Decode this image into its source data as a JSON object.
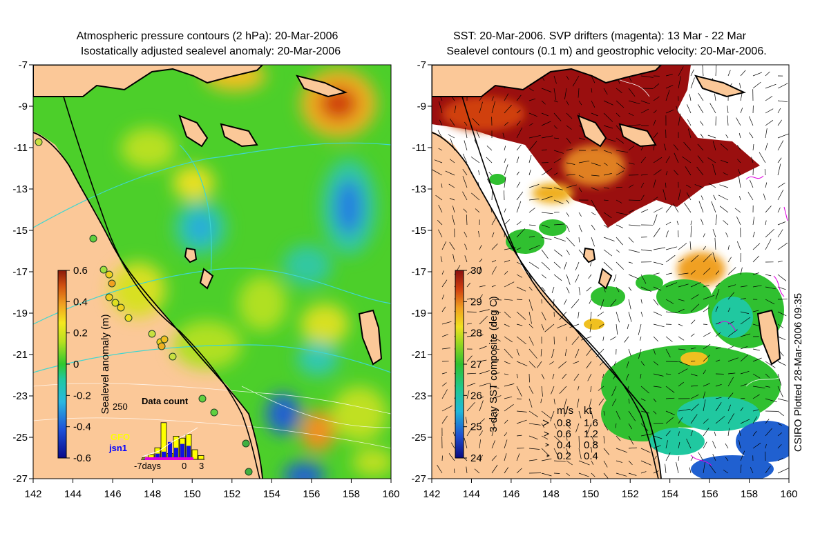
{
  "left_panel": {
    "title_line1": "Atmospheric pressure contours (2 hPa): 20-Mar-2006",
    "title_line2": "Isostatically adjusted sealevel anomaly: 20-Mar-2006",
    "colorbar": {
      "label": "Sealevel anomaly (m)",
      "ticks": [
        "0.6",
        "0.4",
        "0.2",
        "0",
        "-0.2",
        "-0.4",
        "-0.6"
      ],
      "range": [
        -0.6,
        0.6
      ]
    },
    "inset": {
      "title": "Data count",
      "ymax_label": "250",
      "x_labels": [
        "-7days",
        "0",
        "3"
      ],
      "legend": [
        {
          "name": "GFO",
          "color": "#ffff00"
        },
        {
          "name": "jsn1",
          "color": "#0000ff"
        }
      ],
      "gfo_counts": [
        10,
        25,
        60,
        190,
        30,
        120,
        110,
        130,
        50,
        20
      ],
      "jsn1_counts": [
        5,
        10,
        30,
        40,
        90,
        60,
        80,
        70,
        0,
        0
      ]
    }
  },
  "right_panel": {
    "title_line1": "SST: 20-Mar-2006. SVP drifters (magenta): 13 Mar - 22 Mar",
    "title_line2": "Sealevel contours (0.1 m) and geostrophic velocity: 20-Mar-2006.",
    "colorbar": {
      "label": "3-day SST composite (deg C)",
      "ticks": [
        "30",
        "29",
        "28",
        "27",
        "26",
        "25",
        "24"
      ],
      "range": [
        24,
        30
      ]
    },
    "velocity_legend": {
      "header_ms": "m/s",
      "header_kt": "kt",
      "rows": [
        {
          "ms": "0.8",
          "kt": "1.6"
        },
        {
          "ms": "0.6",
          "kt": "1.2"
        },
        {
          "ms": "0.4",
          "kt": "0.8"
        },
        {
          "ms": "0.2",
          "kt": "0.4"
        }
      ]
    }
  },
  "axes": {
    "lon_ticks": [
      "142",
      "144",
      "146",
      "148",
      "150",
      "152",
      "154",
      "156",
      "158",
      "160"
    ],
    "lat_ticks": [
      "-7",
      "-9",
      "-11",
      "-13",
      "-15",
      "-17",
      "-19",
      "-21",
      "-23",
      "-25",
      "-27"
    ],
    "lon_range": [
      142,
      160
    ],
    "lat_range": [
      -27,
      -7
    ]
  },
  "credit": "CSIRO Plotted 28-Mar-2006 09:35",
  "colors": {
    "land": "#fbc898",
    "sla_base": "#4ccf2a",
    "sst_warm": "#9a0f0f",
    "contour_pressure": "#3fd6d0",
    "drifter": "#e000e0"
  }
}
